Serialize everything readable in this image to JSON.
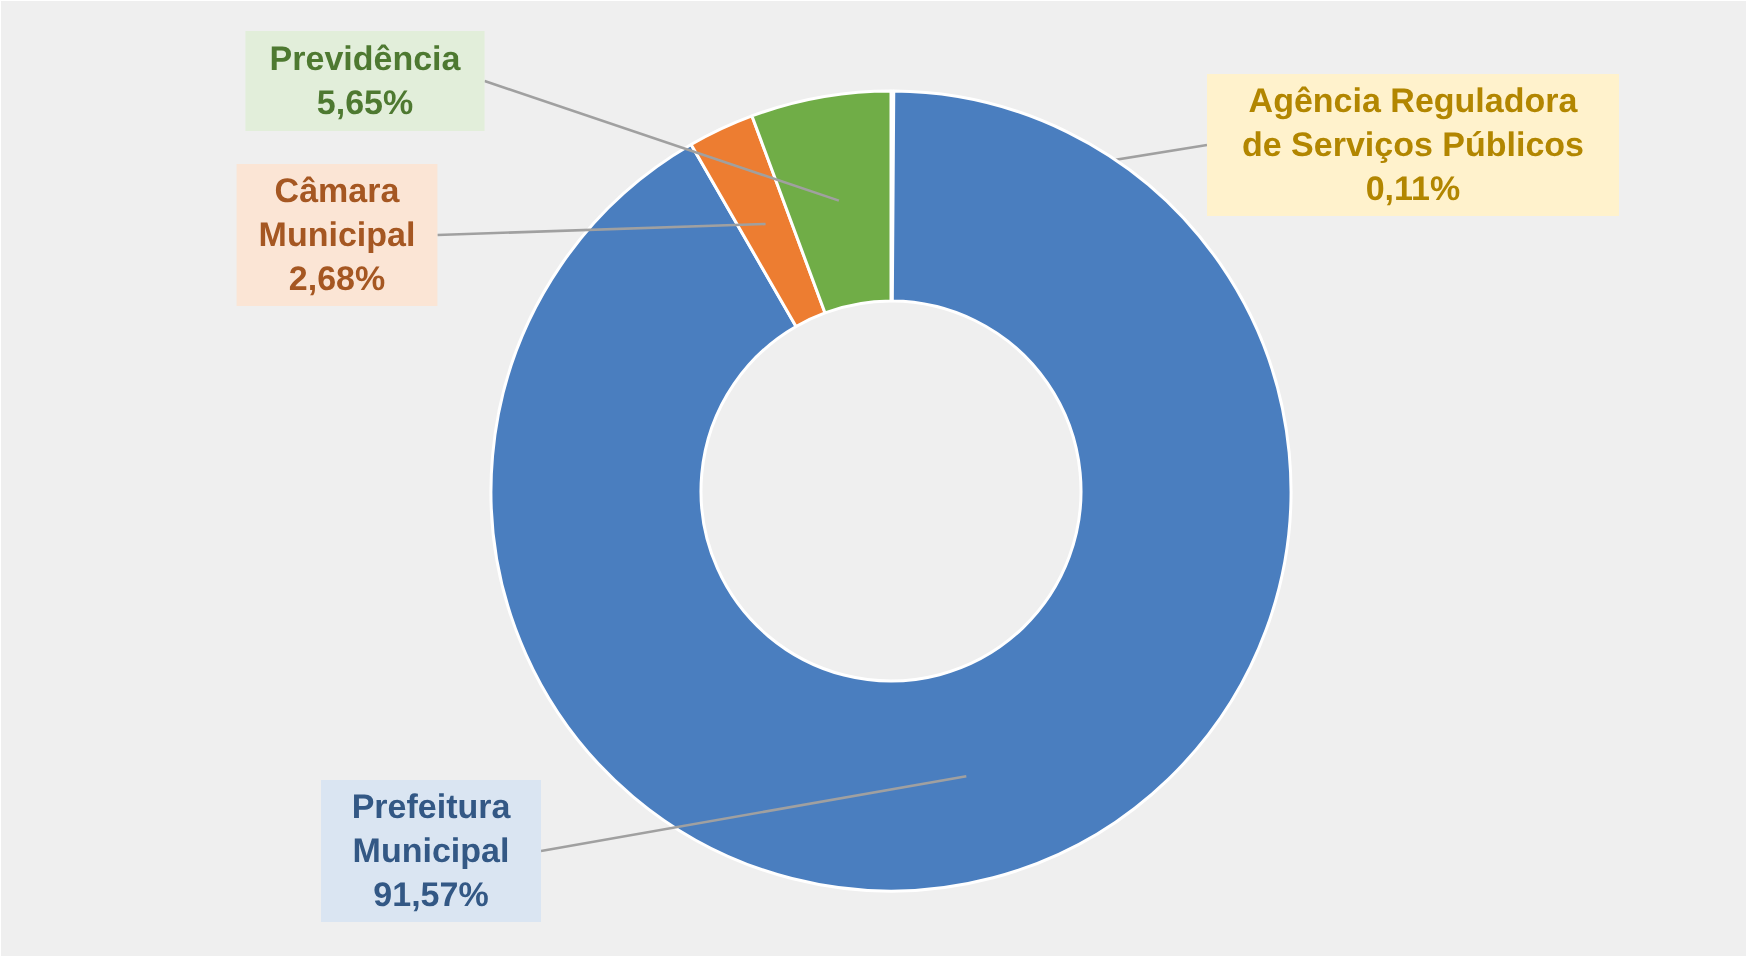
{
  "chart_data": {
    "type": "donut",
    "categories": [
      "Agência Reguladora de Serviços Públicos",
      "Prefeitura Municipal",
      "Câmara Municipal",
      "Previdência"
    ],
    "values": [
      0.11,
      91.57,
      2.68,
      5.65
    ],
    "colors": [
      "#ffc000",
      "#4a7ebf",
      "#ed7d31",
      "#70ad47"
    ],
    "value_labels": [
      "0,11%",
      "91,57%",
      "2,68%",
      "5,65%"
    ]
  }
}
